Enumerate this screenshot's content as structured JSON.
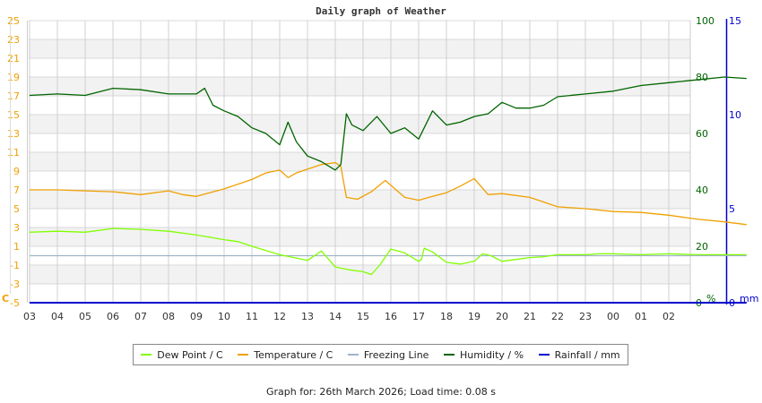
{
  "chart_data": {
    "type": "line",
    "title": "Daily graph of Weather",
    "xlabel": "",
    "x_ticks": [
      "03",
      "04",
      "05",
      "06",
      "07",
      "08",
      "09",
      "10",
      "11",
      "12",
      "13",
      "14",
      "15",
      "16",
      "17",
      "18",
      "19",
      "20",
      "21",
      "22",
      "23",
      "00",
      "01",
      "02"
    ],
    "axes": {
      "left": {
        "label": "C",
        "ticks": [
          25,
          23,
          21,
          19,
          17,
          15,
          13,
          11,
          9,
          7,
          5,
          3,
          1,
          -1,
          -3,
          -5
        ],
        "range": [
          -5,
          25
        ],
        "color": "#f0a000"
      },
      "right_humidity": {
        "label": "%",
        "ticks": [
          100,
          80,
          60,
          40,
          20,
          0
        ],
        "range": [
          0,
          100
        ],
        "color": "#006400"
      },
      "right_rainfall": {
        "label": "mm",
        "ticks": [
          15,
          10,
          5,
          0
        ],
        "range": [
          0,
          15
        ],
        "color": "#0000cc"
      }
    },
    "grid": true,
    "legend_position": "bottom",
    "series": [
      {
        "name": "Dew Point / C",
        "color": "#80ff00",
        "axis": "left",
        "x_hours": [
          0,
          1,
          2,
          3,
          4,
          5,
          6,
          7,
          7.5,
          8,
          9,
          10,
          10.5,
          11,
          11.5,
          12,
          12.3,
          12.6,
          13,
          13.5,
          14,
          14.1,
          14.2,
          14.5,
          15,
          15.5,
          16,
          16.3,
          16.6,
          17,
          17.5,
          18,
          18.5,
          19,
          19.5,
          20,
          20.5,
          21,
          22,
          23,
          24,
          25,
          25.8
        ],
        "values": [
          2.5,
          2.6,
          2.5,
          2.9,
          2.8,
          2.6,
          2.2,
          1.7,
          1.5,
          1.0,
          0.1,
          -0.5,
          0.5,
          -1.2,
          -1.5,
          -1.7,
          -2.0,
          -1.0,
          0.7,
          0.3,
          -0.6,
          -0.4,
          0.8,
          0.4,
          -0.7,
          -0.9,
          -0.6,
          0.2,
          0.0,
          -0.6,
          -0.4,
          -0.2,
          -0.1,
          0.1,
          0.1,
          0.1,
          0.2,
          0.2,
          0.1,
          0.2,
          0.1,
          0.1,
          0.1
        ]
      },
      {
        "name": "Temperature / C",
        "color": "#f0a000",
        "axis": "left",
        "x_hours": [
          0,
          1,
          2,
          3,
          4,
          5,
          5.5,
          6,
          7,
          8,
          8.5,
          9,
          9.3,
          9.6,
          10,
          10.5,
          11,
          11.2,
          11.4,
          11.8,
          12.3,
          12.8,
          13.5,
          14,
          14.5,
          15,
          15.5,
          16,
          16.5,
          17,
          18,
          19,
          20,
          21,
          22,
          23,
          24,
          25,
          25.8
        ],
        "values": [
          7.0,
          7.0,
          6.9,
          6.8,
          6.5,
          6.9,
          6.5,
          6.3,
          7.1,
          8.1,
          8.8,
          9.1,
          8.3,
          8.8,
          9.2,
          9.7,
          9.9,
          9.5,
          6.2,
          6.0,
          6.8,
          8.0,
          6.2,
          5.9,
          6.3,
          6.7,
          7.4,
          8.2,
          6.5,
          6.6,
          6.2,
          5.2,
          5.0,
          4.7,
          4.6,
          4.3,
          3.9,
          3.6,
          3.3
        ]
      },
      {
        "name": "Freezing Line",
        "color": "#a0b4c8",
        "axis": "left",
        "x_hours": [
          0,
          25.8
        ],
        "values": [
          0,
          0
        ]
      },
      {
        "name": "Humidity / %",
        "color": "#006400",
        "axis": "right_humidity",
        "x_hours": [
          0,
          1,
          2,
          3,
          4,
          5,
          6,
          6.3,
          6.6,
          7,
          7.5,
          8,
          8.5,
          9,
          9.3,
          9.6,
          10,
          10.5,
          11,
          11.2,
          11.4,
          11.6,
          12,
          12.5,
          13,
          13.5,
          14,
          14.5,
          15,
          15.5,
          16,
          16.5,
          17,
          17.5,
          18,
          18.5,
          19,
          20,
          21,
          22,
          23,
          24,
          25,
          25.8
        ],
        "values": [
          73.5,
          74,
          73.5,
          76,
          75.5,
          74,
          74,
          76,
          70,
          68,
          66,
          62,
          60,
          56,
          64,
          57,
          52,
          50,
          47,
          49,
          67,
          63,
          61,
          66,
          60,
          62,
          58,
          68,
          63,
          64,
          66,
          67,
          71,
          69,
          69,
          70,
          73,
          74,
          75,
          77,
          78,
          79,
          80,
          79.5
        ]
      },
      {
        "name": "Rainfall / mm",
        "color": "#0000cc",
        "axis": "right_rainfall",
        "x_hours": [
          0,
          25.8
        ],
        "values": [
          0,
          0
        ]
      }
    ]
  },
  "legend": {
    "items": [
      {
        "label": "Dew Point / C",
        "color": "#80ff00"
      },
      {
        "label": "Temperature / C",
        "color": "#f0a000"
      },
      {
        "label": "Freezing Line",
        "color": "#a0b4c8"
      },
      {
        "label": "Humidity / %",
        "color": "#006400"
      },
      {
        "label": "Rainfall / mm",
        "color": "#0000cc"
      }
    ]
  },
  "footer": {
    "text": "Graph for: 26th March 2026; Load time: 0.08 s"
  }
}
